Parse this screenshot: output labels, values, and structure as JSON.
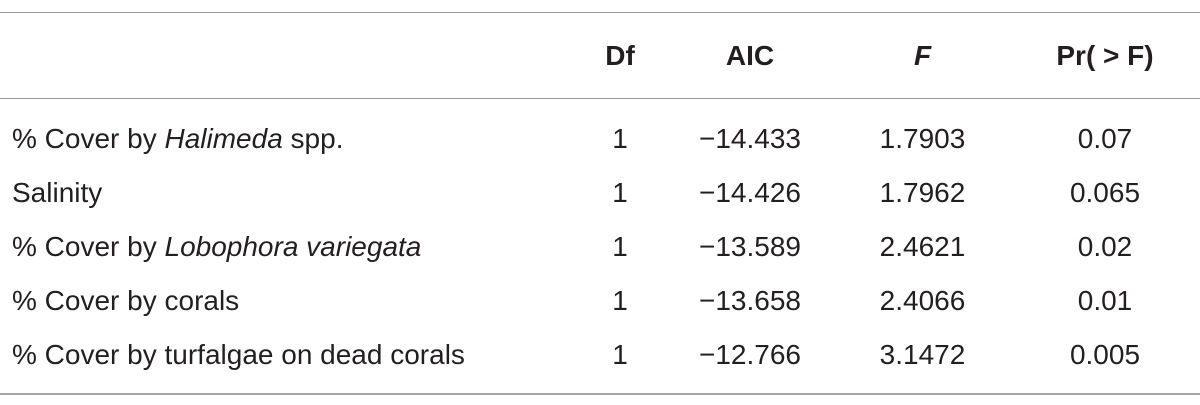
{
  "table": {
    "headers": [
      "",
      "Df",
      "AIC",
      "F",
      "Pr( > F)"
    ],
    "rows": [
      {
        "label_pre": "% Cover by ",
        "label_italic": "Halimeda",
        "label_post": " spp.",
        "df": "1",
        "aic": "−14.433",
        "f": "1.7903",
        "p": "0.07"
      },
      {
        "label_pre": "Salinity",
        "label_italic": "",
        "label_post": "",
        "df": "1",
        "aic": "−14.426",
        "f": "1.7962",
        "p": "0.065"
      },
      {
        "label_pre": "% Cover by ",
        "label_italic": "Lobophora variegata",
        "label_post": "",
        "df": "1",
        "aic": "−13.589",
        "f": "2.4621",
        "p": "0.02"
      },
      {
        "label_pre": "% Cover by corals",
        "label_italic": "",
        "label_post": "",
        "df": "1",
        "aic": "−13.658",
        "f": "2.4066",
        "p": "0.01"
      },
      {
        "label_pre": "% Cover by turfalgae on dead corals",
        "label_italic": "",
        "label_post": "",
        "df": "1",
        "aic": "−12.766",
        "f": "3.1472",
        "p": "0.005"
      }
    ]
  }
}
